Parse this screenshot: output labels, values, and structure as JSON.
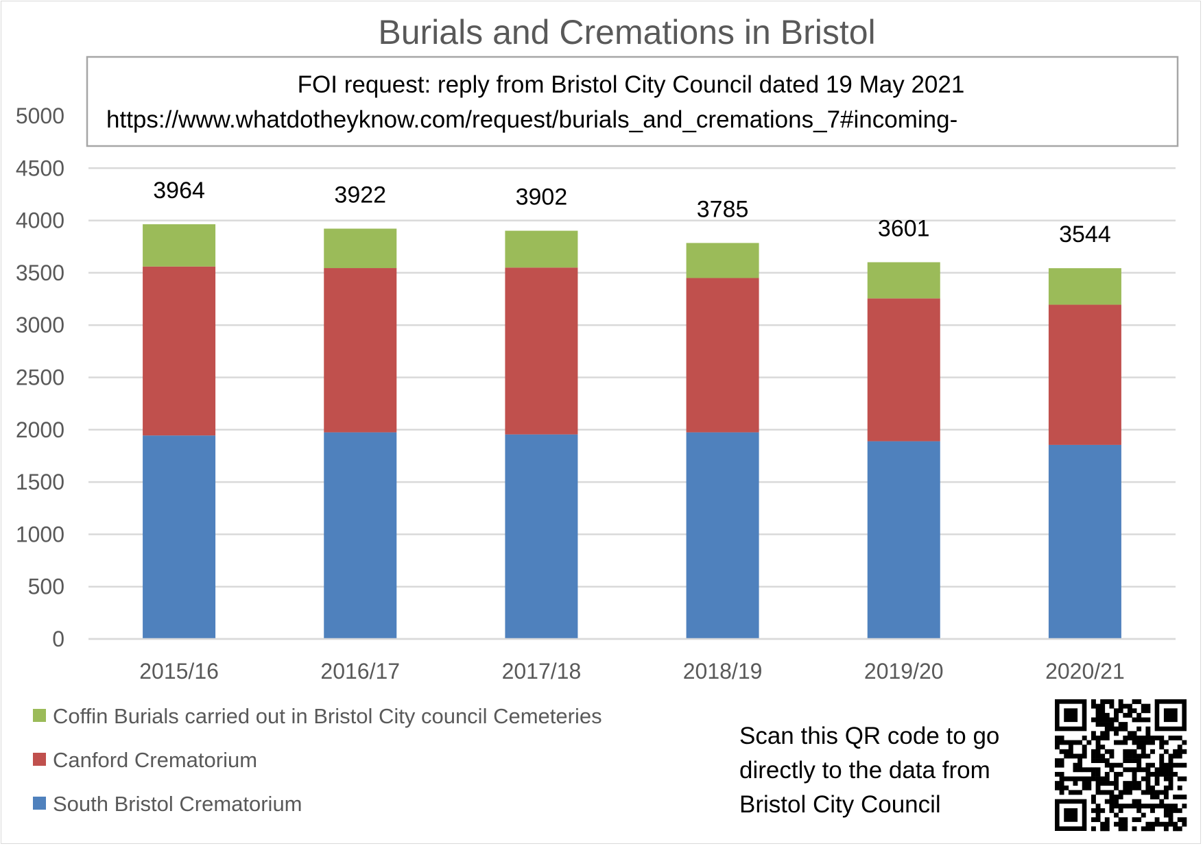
{
  "chart_data": {
    "type": "bar",
    "stacked": true,
    "title": "Burials and Cremations in Bristol",
    "annotation": {
      "line1": "FOI request: reply from Bristol City Council dated 19 May 2021",
      "line2": "https://www.whatdotheyknow.com/request/burials_and_cremations_7#incoming-"
    },
    "categories": [
      "2015/16",
      "2016/17",
      "2017/18",
      "2018/19",
      "2019/20",
      "2020/21"
    ],
    "series": [
      {
        "name": "South Bristol Crematorium",
        "color": "#4f81bd",
        "values": [
          1945,
          1975,
          1955,
          1975,
          1890,
          1855
        ]
      },
      {
        "name": "Canford Crematorium",
        "color": "#c0504d",
        "values": [
          1615,
          1570,
          1595,
          1475,
          1365,
          1340
        ]
      },
      {
        "name": "Coffin Burials carried out in Bristol City council Cemeteries",
        "color": "#9bbb59",
        "values": [
          404,
          377,
          352,
          335,
          346,
          349
        ]
      }
    ],
    "totals": [
      3964,
      3922,
      3902,
      3785,
      3601,
      3544
    ],
    "ylim": [
      0,
      5000
    ],
    "yticks": [
      0,
      500,
      1000,
      1500,
      2000,
      2500,
      3000,
      3500,
      4000,
      4500,
      5000
    ],
    "grid": true,
    "legend_position": "bottom-left",
    "xlabel": "",
    "ylabel": ""
  },
  "qr": {
    "caption_lines": [
      "Scan this QR code to go",
      "directly to the data from",
      "Bristol City Council"
    ],
    "icon": "qr-code-icon"
  }
}
